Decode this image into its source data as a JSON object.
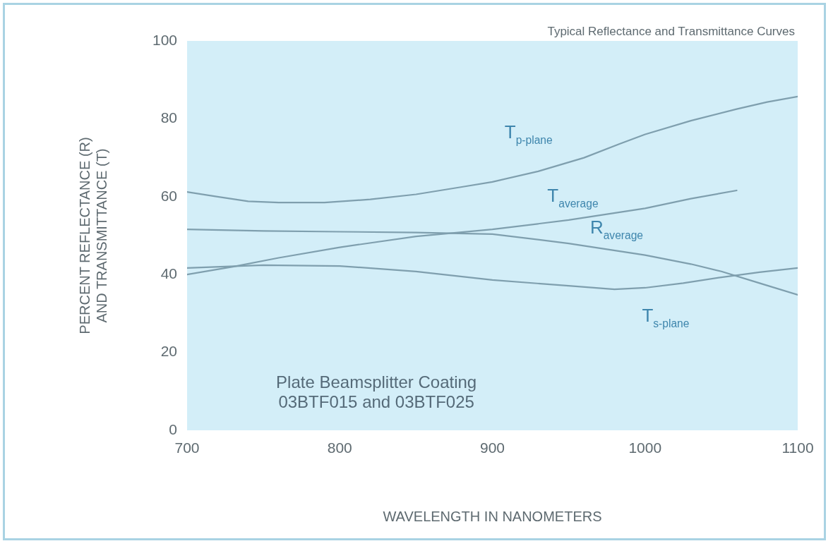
{
  "chart_data": {
    "type": "line",
    "title": "Typical Reflectance and Transmittance Curves",
    "xlabel": "WAVELENGTH IN NANOMETERS",
    "ylabel": "PERCENT REFLECTANCE (R)\nAND TRANSMITTANCE (T)",
    "xlim": [
      700,
      1100
    ],
    "xticks": [
      700,
      800,
      900,
      1000,
      1100
    ],
    "ylim": [
      0,
      100
    ],
    "yticks": [
      0,
      20,
      40,
      60,
      80,
      100
    ],
    "grid": false,
    "legend": false,
    "marker": "none",
    "line_style": "solid",
    "series": [
      {
        "name": "T$_{p-plane}$",
        "color": "#7f9fae",
        "x": [
          700,
          720,
          740,
          760,
          790,
          820,
          850,
          880,
          900,
          930,
          960,
          983,
          1000,
          1030,
          1060,
          1080,
          1100
        ],
        "values": [
          61.2,
          60,
          58.8,
          58.5,
          58.5,
          59.3,
          60.6,
          62.5,
          63.8,
          66.5,
          70,
          73.5,
          76,
          79.5,
          82.5,
          84.3,
          85.7
        ]
      },
      {
        "name": "R$_{average}$",
        "color": "#7f9fae",
        "x": [
          700,
          750,
          800,
          850,
          900,
          950,
          1000,
          1030,
          1050,
          1075,
          1100
        ],
        "values": [
          51.6,
          51.2,
          51,
          50.8,
          50.4,
          48,
          45,
          42.7,
          40.8,
          37.8,
          34.8
        ]
      },
      {
        "name": "T$_{average}$",
        "color": "#7f9fae",
        "x": [
          700,
          730,
          760,
          800,
          850,
          900,
          950,
          1000,
          1030,
          1060
        ],
        "values": [
          40,
          42,
          44.3,
          47,
          49.8,
          51.6,
          54,
          57,
          59.5,
          61.6
        ]
      },
      {
        "name": "T$_{s-plane}$",
        "color": "#7f9fae",
        "x": [
          700,
          750,
          800,
          850,
          900,
          950,
          980,
          1000,
          1025,
          1050,
          1075,
          1100
        ],
        "values": [
          41.7,
          42.4,
          42.2,
          40.8,
          38.6,
          37.1,
          36.2,
          36.6,
          37.8,
          39.3,
          40.6,
          41.7
        ]
      }
    ],
    "annotations": [
      "Plate Beamsplitter Coating\n03BTF015 and 03BTF025"
    ]
  }
}
